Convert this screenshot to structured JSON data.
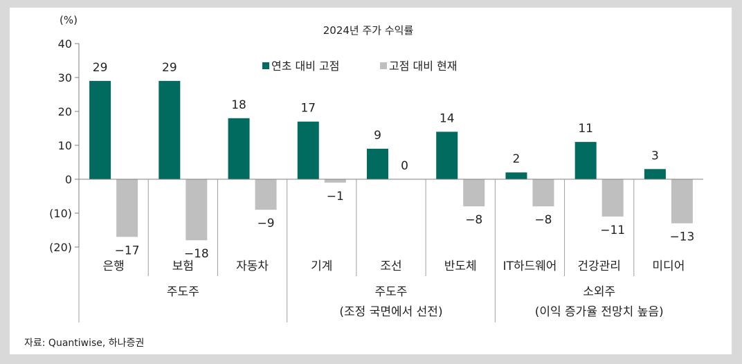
{
  "chart_data": {
    "type": "bar",
    "title": "2024년 주가 수익률",
    "y_unit": "(%)",
    "ylim": [
      -20,
      40
    ],
    "yticks": [
      40,
      30,
      20,
      10,
      0,
      -10,
      -20
    ],
    "ytick_labels": [
      "40",
      "30",
      "20",
      "10",
      "0",
      "(10)",
      "(20)"
    ],
    "categories": [
      "은행",
      "보험",
      "자동차",
      "기계",
      "조선",
      "반도체",
      "IT하드웨어",
      "건강관리",
      "미디어"
    ],
    "series": [
      {
        "name": "연초 대비 고점",
        "color": "#006b5e",
        "values": [
          29,
          29,
          18,
          17,
          9,
          14,
          2,
          11,
          3
        ],
        "labels": [
          "29",
          "29",
          "18",
          "17",
          "9",
          "14",
          "2",
          "11",
          "3"
        ]
      },
      {
        "name": "고점 대비 현재",
        "color": "#bfbfbf",
        "values": [
          -17,
          -18,
          -9,
          -1,
          0,
          -8,
          -8,
          -11,
          -13
        ],
        "labels": [
          "−17",
          "−18",
          "−9",
          "−1",
          "0",
          "−8",
          "−8",
          "−11",
          "−13"
        ]
      }
    ],
    "groups": [
      {
        "label_lines": [
          "주도주"
        ],
        "span": [
          0,
          2
        ]
      },
      {
        "label_lines": [
          "주도주",
          "(조정 국면에서 선전)"
        ],
        "span": [
          3,
          5
        ]
      },
      {
        "label_lines": [
          "소외주",
          "(이익 증가율 전망치 높음)"
        ],
        "span": [
          6,
          8
        ]
      }
    ],
    "legend_position": "top-center",
    "grid": false
  },
  "source": "자료: Quantiwise, 하나증권"
}
